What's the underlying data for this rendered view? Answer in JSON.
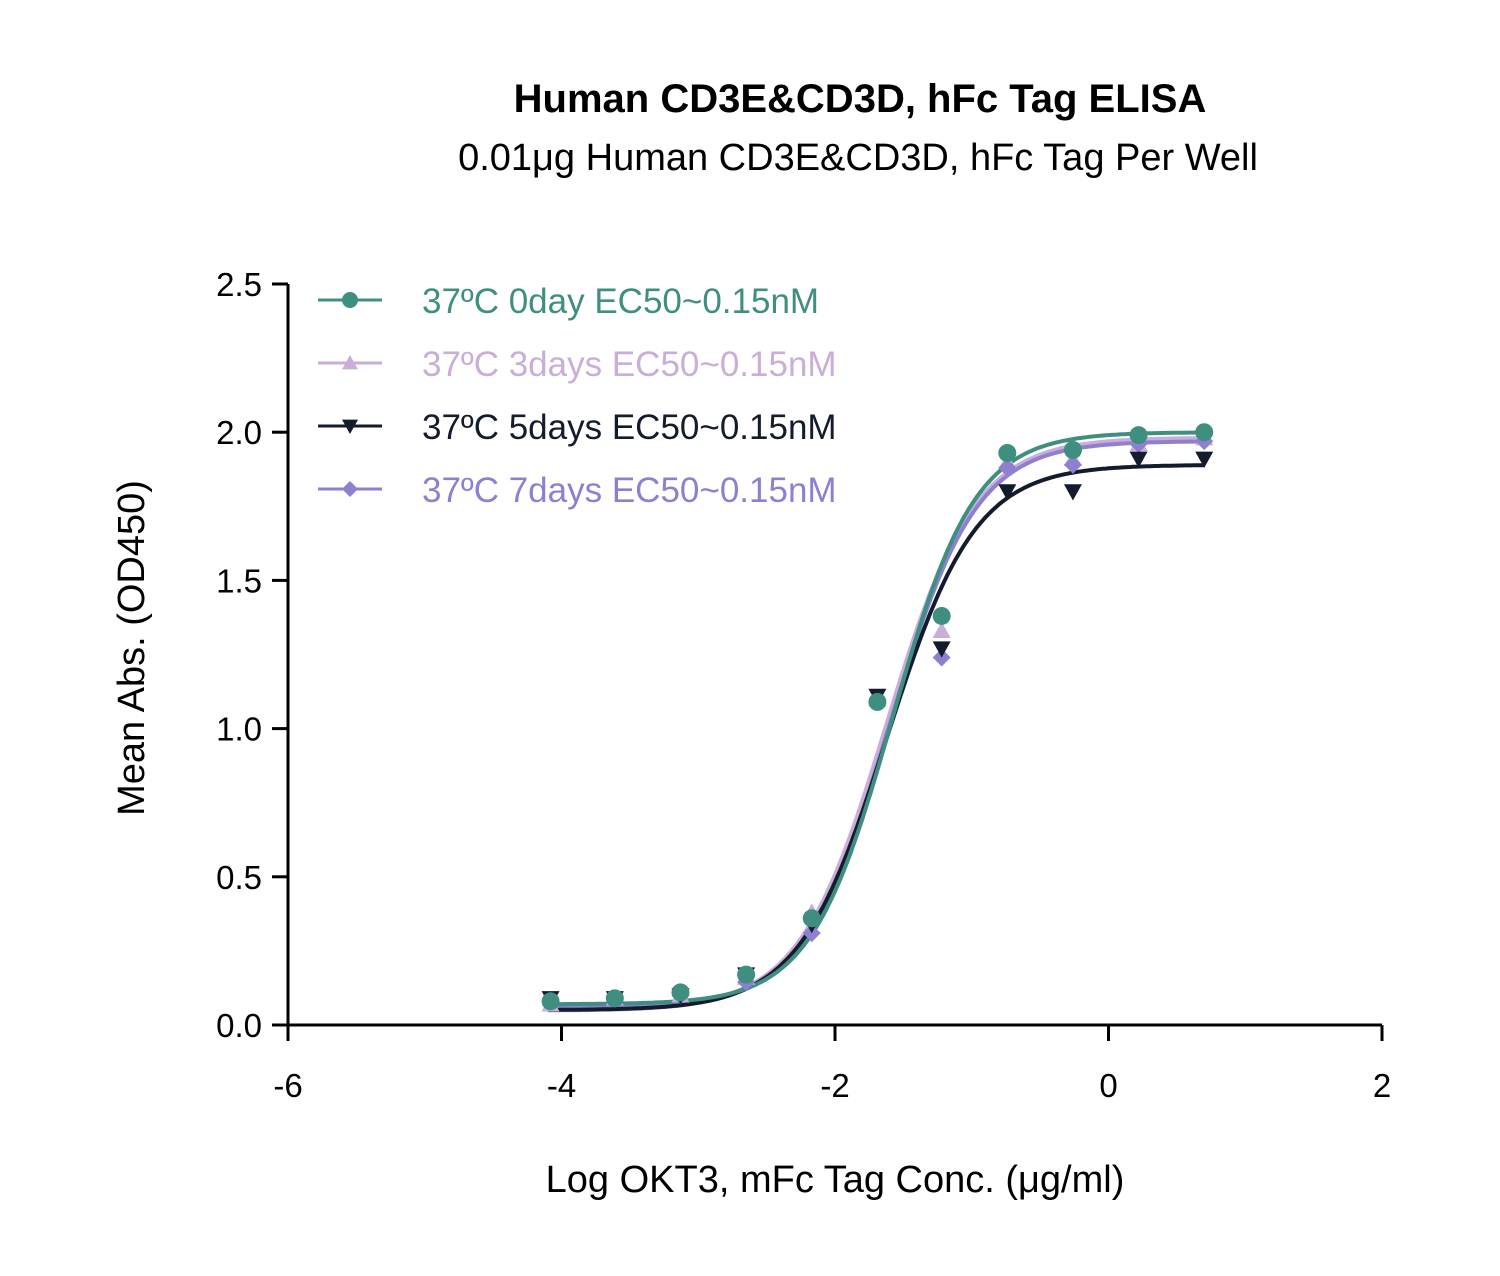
{
  "chart_data": {
    "type": "scatter",
    "title": "Human CD3E&CD3D, hFc Tag ELISA",
    "subtitle": "0.01μg Human CD3E&CD3D, hFc Tag Per Well",
    "xlabel": "Log OKT3, mFc Tag Conc. (μg/ml)",
    "ylabel": "Mean Abs. (OD450)",
    "xlim": [
      -6,
      2
    ],
    "ylim": [
      0,
      2.5
    ],
    "xticks": [
      "-6",
      "-4",
      "-2",
      "0",
      "2"
    ],
    "yticks": [
      "0.0",
      "0.5",
      "1.0",
      "1.5",
      "2.0",
      "2.5"
    ],
    "grid": false,
    "legend_position": "top-left",
    "x": [
      -4.08,
      -3.61,
      -3.13,
      -2.65,
      -2.17,
      -1.69,
      -1.22,
      -0.74,
      -0.26,
      0.22,
      0.7
    ],
    "series": [
      {
        "name": "37ºC 0day EC50~0.15nM",
        "color": "#3f8f80",
        "marker": "circle",
        "values": [
          0.08,
          0.09,
          0.11,
          0.17,
          0.36,
          1.09,
          1.38,
          1.93,
          1.94,
          1.99,
          2.0
        ],
        "fit": {
          "bottom": 0.07,
          "top": 2.0,
          "logEC50": -1.58,
          "hill": 1.45
        }
      },
      {
        "name": "37ºC 3days EC50~0.15nM",
        "color": "#c9aed9",
        "marker": "triangle-up",
        "values": [
          0.07,
          0.09,
          0.1,
          0.16,
          0.38,
          1.1,
          1.33,
          1.9,
          1.91,
          1.96,
          1.98
        ],
        "fit": {
          "bottom": 0.05,
          "top": 1.98,
          "logEC50": -1.62,
          "hill": 1.35
        }
      },
      {
        "name": "37ºC 5days EC50~0.15nM",
        "color": "#131c2c",
        "marker": "triangle-down",
        "values": [
          0.09,
          0.09,
          0.1,
          0.17,
          0.34,
          1.11,
          1.27,
          1.8,
          1.8,
          1.91,
          1.91
        ],
        "fit": {
          "bottom": 0.05,
          "top": 1.89,
          "logEC50": -1.62,
          "hill": 1.35
        }
      },
      {
        "name": "37ºC 7days EC50~0.15nM",
        "color": "#8e7fd0",
        "marker": "diamond",
        "values": [
          0.08,
          0.09,
          0.1,
          0.145,
          0.31,
          1.09,
          1.24,
          1.88,
          1.89,
          1.96,
          1.97
        ],
        "fit": {
          "bottom": 0.06,
          "top": 1.97,
          "logEC50": -1.6,
          "hill": 1.38
        }
      }
    ]
  }
}
